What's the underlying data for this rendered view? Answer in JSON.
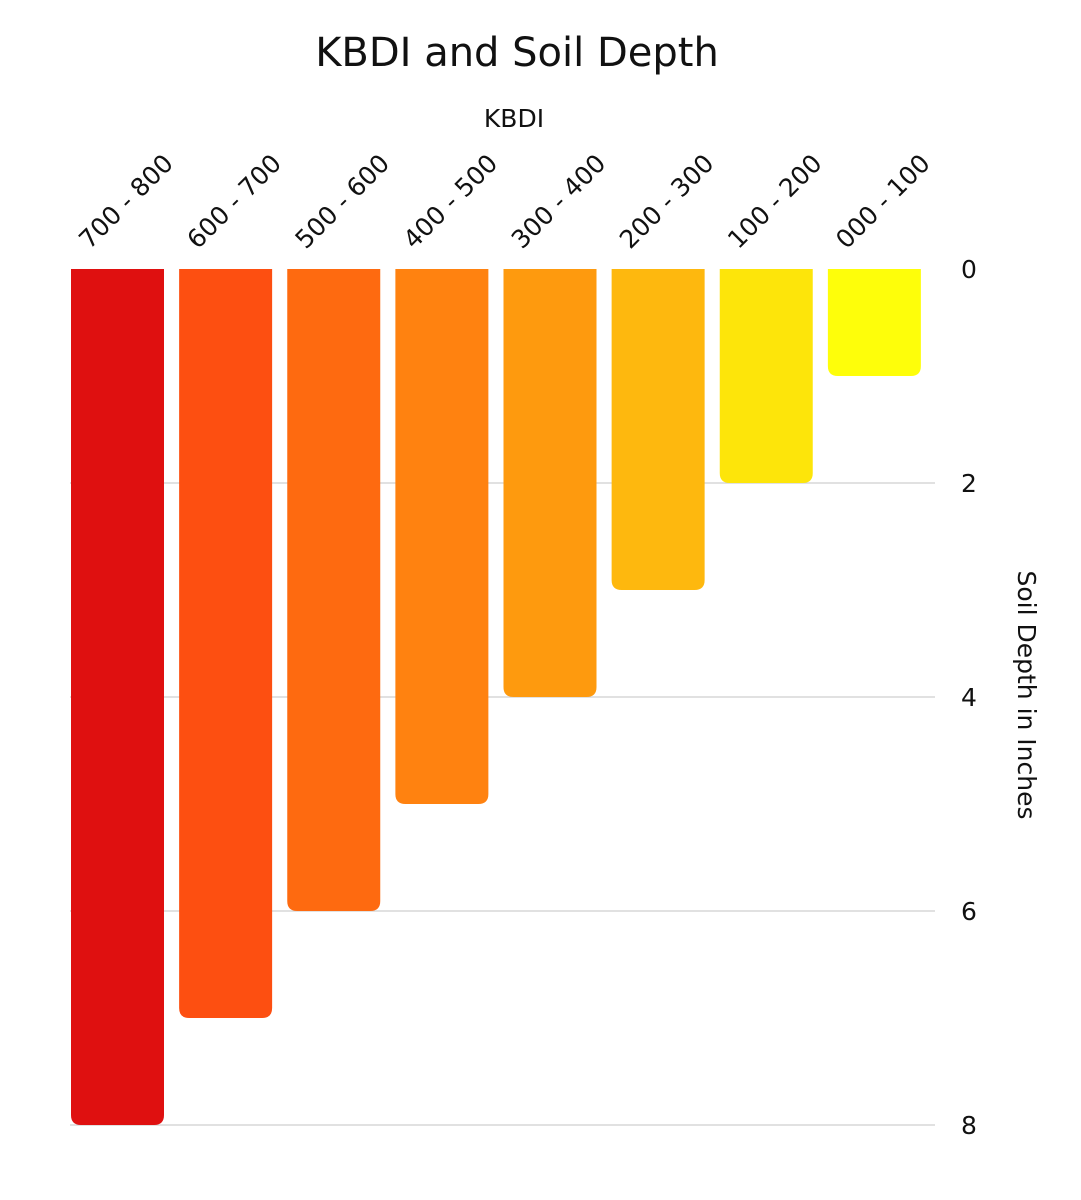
{
  "chart_data": {
    "type": "bar",
    "title": "KBDI and Soil Depth",
    "xlabel": "KBDI",
    "ylabel": "Soil Depth in Inches",
    "categories": [
      "700 - 800",
      "600 - 700",
      "500 - 600",
      "400 - 500",
      "300 - 400",
      "200 - 300",
      "100 - 200",
      "000 - 100"
    ],
    "values": [
      8,
      7,
      6,
      5,
      4,
      3,
      2,
      1
    ],
    "colors": [
      "#df1010",
      "#fd4f11",
      "#fe6a10",
      "#ff8210",
      "#fe9a0e",
      "#feb80e",
      "#fde50a",
      "#fefe0a"
    ],
    "ylim": [
      0,
      8
    ],
    "yticks": [
      0,
      2,
      4,
      6,
      8
    ],
    "y_axis_inverted": true,
    "y_axis_position": "right",
    "x_axis_position": "top",
    "grid": true
  }
}
